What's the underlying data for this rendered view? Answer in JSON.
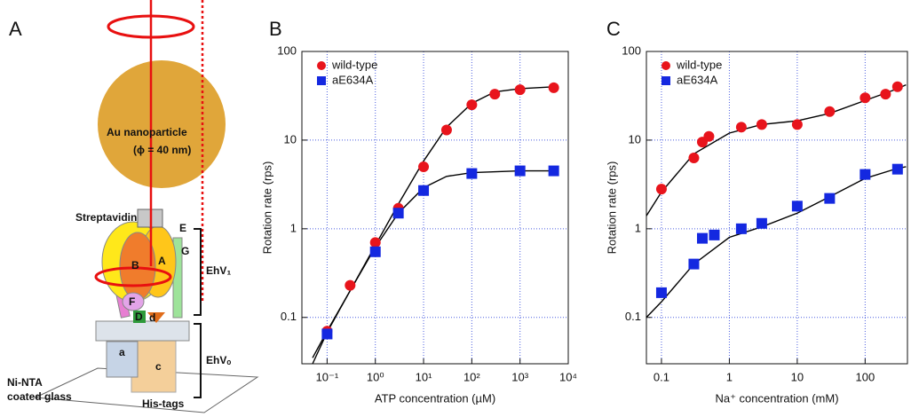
{
  "panel_labels": [
    "A",
    "B",
    "C"
  ],
  "diagram": {
    "labels": [
      "Au nanoparticle",
      "(ϕ = 40 nm)",
      "Streptavidin",
      "E",
      "G",
      "A",
      "B",
      "F",
      "D",
      "d",
      "a",
      "c",
      "EhV₁",
      "EhVₒ",
      "Ni-NTA",
      "coated glass",
      "His-tags"
    ]
  },
  "chart_data": [
    {
      "type": "scatter",
      "x_label": "ATP concentration (µM)",
      "y_label": "Rotation rate (rps)",
      "log_x": true,
      "log_y": true,
      "grid": true,
      "grid_color": "#4a5ee0",
      "legend": "upper-left",
      "xlim": [
        0.03,
        10000
      ],
      "ylim": [
        0.03,
        100
      ],
      "xticks": [
        {
          "value": 0.1,
          "label": "10⁻¹"
        },
        {
          "value": 1,
          "label": "10⁰"
        },
        {
          "value": 10,
          "label": "10¹"
        },
        {
          "value": 100,
          "label": "10²"
        },
        {
          "value": 1000,
          "label": "10³"
        },
        {
          "value": 10000,
          "label": "10⁴"
        }
      ],
      "yticks": [
        0.1,
        1,
        10,
        100
      ],
      "series": [
        {
          "name": "wild-type",
          "color": "#e8141c",
          "marker": "circle",
          "x": [
            0.1,
            0.3,
            1,
            3,
            10,
            30,
            100,
            300,
            1000,
            5000
          ],
          "values": [
            0.07,
            0.23,
            0.7,
            1.7,
            5,
            13,
            25,
            33,
            37,
            39
          ]
        },
        {
          "name": "aE634A",
          "color": "#1428e0",
          "marker": "square",
          "x": [
            0.1,
            1,
            3,
            10,
            100,
            1000,
            5000
          ],
          "values": [
            0.065,
            0.55,
            1.5,
            2.7,
            4.2,
            4.5,
            4.5
          ]
        }
      ],
      "fits": [
        {
          "color": "#000000",
          "x": [
            0.05,
            0.1,
            0.3,
            1,
            3,
            10,
            30,
            100,
            300,
            1000,
            5000
          ],
          "values": [
            0.03,
            0.068,
            0.2,
            0.65,
            1.9,
            5.8,
            14,
            26,
            35,
            38,
            40
          ]
        },
        {
          "color": "#000000",
          "x": [
            0.05,
            0.1,
            0.3,
            1,
            3,
            10,
            30,
            100,
            1000,
            5000
          ],
          "values": [
            0.035,
            0.07,
            0.2,
            0.62,
            1.5,
            2.9,
            3.9,
            4.3,
            4.5,
            4.5
          ]
        }
      ]
    },
    {
      "type": "scatter",
      "x_label": "Na⁺ concentration (mM)",
      "y_label": "Rotation rate (rps)",
      "log_x": true,
      "log_y": true,
      "grid": true,
      "grid_color": "#4a5ee0",
      "legend": "upper-left",
      "xlim": [
        0.06,
        420
      ],
      "ylim": [
        0.03,
        100
      ],
      "xticks": [
        0.1,
        1,
        10,
        100
      ],
      "yticks": [
        0.1,
        1,
        10,
        100
      ],
      "series": [
        {
          "name": "wild-type",
          "color": "#e8141c",
          "marker": "circle",
          "x": [
            0.1,
            0.3,
            0.4,
            0.5,
            1.5,
            3,
            10,
            30,
            100,
            200,
            300
          ],
          "values": [
            2.8,
            6.3,
            9.5,
            11,
            14,
            15,
            15,
            21,
            30,
            33,
            40
          ]
        },
        {
          "name": "aE634A",
          "color": "#1428e0",
          "marker": "square",
          "x": [
            0.1,
            0.3,
            0.4,
            0.6,
            1.5,
            3,
            10,
            30,
            100,
            300
          ],
          "values": [
            0.19,
            0.4,
            0.78,
            0.85,
            1,
            1.15,
            1.8,
            2.2,
            4.1,
            4.7
          ]
        }
      ],
      "fits": [
        {
          "color": "#000000",
          "x": [
            0.06,
            0.1,
            0.3,
            1,
            3,
            10,
            30,
            100,
            300,
            400
          ],
          "values": [
            1.4,
            2.6,
            7,
            12,
            15,
            16.5,
            20,
            28,
            38,
            42
          ]
        },
        {
          "color": "#000000",
          "x": [
            0.06,
            0.1,
            0.3,
            1,
            3,
            10,
            30,
            100,
            300,
            400
          ],
          "values": [
            0.1,
            0.15,
            0.4,
            0.8,
            1.05,
            1.5,
            2.3,
            3.7,
            4.8,
            5
          ]
        }
      ]
    }
  ]
}
